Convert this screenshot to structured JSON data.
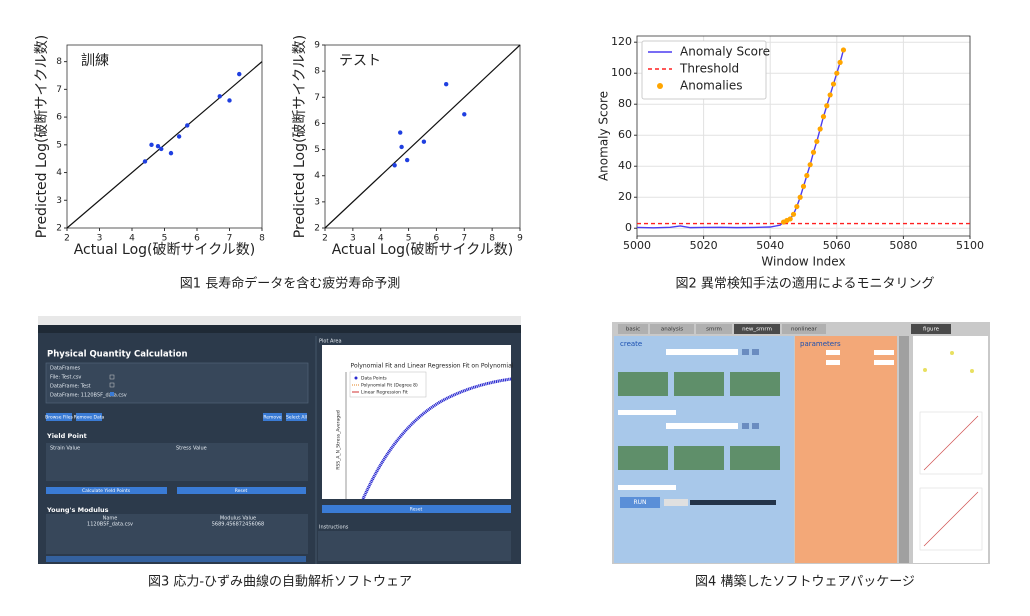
{
  "chart_data": [
    {
      "type": "scatter",
      "annotation": "訓練",
      "xlabel": "Actual Log(破断サイクル数)",
      "ylabel": "Predicted Log(破断サイクル数)",
      "xlim": [
        2,
        8
      ],
      "ylim": [
        2,
        8.6
      ],
      "xticks": [
        2,
        3,
        4,
        5,
        6,
        7,
        8
      ],
      "yticks": [
        2,
        3,
        4,
        5,
        6,
        7,
        8
      ],
      "color": "#1f3fe0",
      "x": [
        4.4,
        4.6,
        4.8,
        4.9,
        5.2,
        5.45,
        5.7,
        6.7,
        7.0,
        7.3
      ],
      "values": [
        4.4,
        5.0,
        4.95,
        4.85,
        4.7,
        5.3,
        5.7,
        6.75,
        6.6,
        7.55
      ]
    },
    {
      "type": "scatter",
      "annotation": "テスト",
      "xlabel": "Actual Log(破断サイクル数)",
      "ylabel": "Predicted Log(破断サイクル数)",
      "xlim": [
        2,
        9
      ],
      "ylim": [
        2,
        9
      ],
      "xticks": [
        2,
        3,
        4,
        5,
        6,
        7,
        8,
        9
      ],
      "yticks": [
        2,
        3,
        4,
        5,
        6,
        7,
        8,
        9
      ],
      "color": "#1f3fe0",
      "x": [
        4.5,
        4.7,
        4.75,
        4.95,
        5.55,
        6.35,
        7.0
      ],
      "values": [
        4.4,
        5.65,
        5.1,
        4.6,
        5.3,
        7.5,
        6.35
      ]
    },
    {
      "type": "line",
      "xlabel": "Window Index",
      "ylabel": "Anomaly Score",
      "xlim": [
        5000,
        5100
      ],
      "ylim": [
        -5,
        124
      ],
      "xticks": [
        5000,
        5020,
        5040,
        5060,
        5080,
        5100
      ],
      "yticks": [
        0,
        20,
        40,
        60,
        80,
        100,
        120
      ],
      "grid": true,
      "legend": "upper-left",
      "series": [
        {
          "name": "Anomaly Score",
          "color": "#4b3cf0",
          "style": "solid",
          "x": [
            5000,
            5005,
            5010,
            5013,
            5016,
            5020,
            5025,
            5030,
            5035,
            5040,
            5043,
            5044,
            5045,
            5046,
            5047,
            5048,
            5049,
            5050,
            5051,
            5052,
            5053,
            5054,
            5055,
            5056,
            5057,
            5058,
            5059,
            5060,
            5061,
            5062
          ],
          "values": [
            0.5,
            0.3,
            0.6,
            1.5,
            0.4,
            0.5,
            0.6,
            0.4,
            0.5,
            0.8,
            2,
            4,
            5,
            6,
            9,
            14,
            20,
            27,
            34,
            41,
            49,
            56,
            64,
            72,
            79,
            86,
            93,
            100,
            107,
            115
          ]
        },
        {
          "name": "Threshold",
          "color": "#ff2020",
          "style": "dashed",
          "x": [
            5000,
            5100
          ],
          "values": [
            3,
            3
          ]
        },
        {
          "name": "Anomalies",
          "color": "#ffa500",
          "style": "points",
          "x": [
            5044,
            5045,
            5046,
            5047,
            5048,
            5049,
            5050,
            5051,
            5052,
            5053,
            5054,
            5055,
            5056,
            5057,
            5058,
            5059,
            5060,
            5061,
            5062
          ],
          "values": [
            4,
            5,
            6,
            9,
            14,
            20,
            27,
            34,
            41,
            49,
            56,
            64,
            72,
            79,
            86,
            93,
            100,
            107,
            115
          ]
        }
      ]
    }
  ],
  "captions": [
    "図1 長寿命データを含む疲労寿命予測",
    "図2 異常検知手法の適用によるモニタリング",
    "図3 応力-ひずみ曲線の自動解析ソフトウェア",
    "図4 構築したソフトウェアパッケージ"
  ],
  "screenshot_3": {
    "heading": "Physical Quantity Calculation",
    "list": [
      "DataFrames",
      "File: Test.csv",
      "DataFrame: Test",
      "DataFrame: 1120B5F_data.csv"
    ],
    "buttons": [
      "Browse Files",
      "Remove Data",
      "Remove",
      "Select All"
    ],
    "yield_heading": "Yield Point",
    "yield_columns": [
      "Strain Value",
      "Stress Value"
    ],
    "yield_buttons": [
      "Calculate Yield Points",
      "Reset"
    ],
    "modulus_heading": "Young's Modulus",
    "modulus_columns": [
      "Name",
      "Modulus Value"
    ],
    "modulus_row": [
      "1120B5F_data.csv",
      "5689.456872456068"
    ],
    "plot_area": "Plot Area",
    "plot_title": "Polynomial Fit and Linear Regression Fit on Polynomial",
    "plot_ylabel": "RSS_A_N_Stress_Averaged",
    "plot_legend": [
      "Data Points",
      "Polynomial Fit (Degree 8)",
      "Linear Regression Fit"
    ],
    "plot_button": "Reset",
    "instructions": "Instructions"
  },
  "screenshot_4": {
    "tabs": [
      "basic",
      "analysis",
      "smrm",
      "new_smrm",
      "nonlinear"
    ],
    "figure_tab": "figure",
    "create": "create",
    "parameters": "parameters",
    "run": "RUN"
  }
}
